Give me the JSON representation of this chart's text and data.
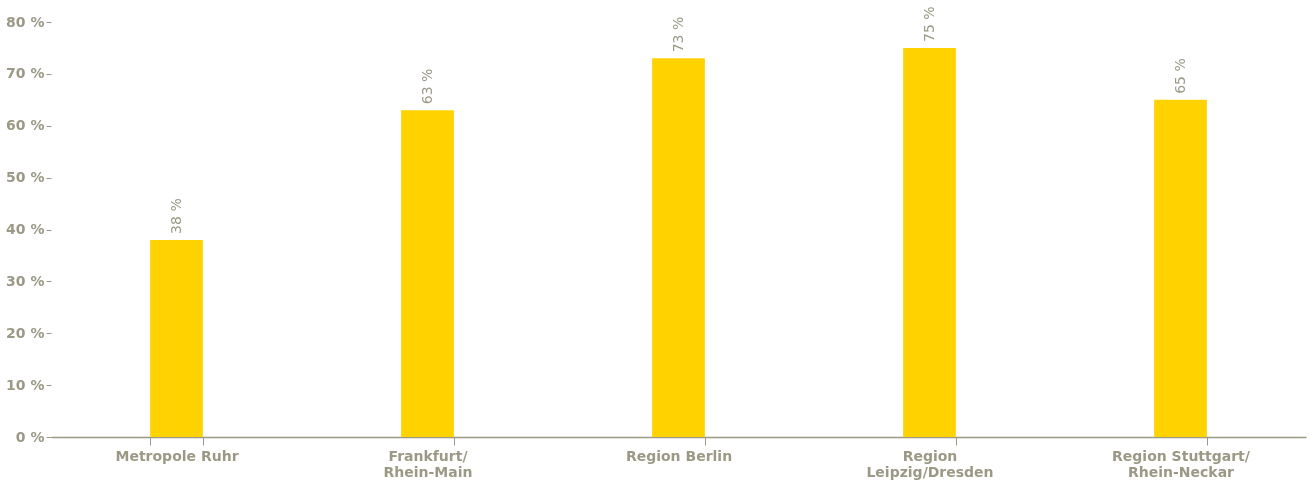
{
  "chart_data": {
    "type": "bar",
    "categories": [
      "Metropole Ruhr",
      "Frankfurt/\nRhein-Main",
      "Region Berlin",
      "Region\nLeipzig/Dresden",
      "Region Stuttgart/\nRhein-Neckar"
    ],
    "values": [
      38,
      63,
      73,
      75,
      65
    ],
    "value_labels": [
      "38 %",
      "63 %",
      "73 %",
      "75 %",
      "65 %"
    ],
    "color": "#ffd200",
    "ylim": [
      0,
      80
    ],
    "yticks": [
      {
        "value": 0,
        "label": "0 %"
      },
      {
        "value": 10,
        "label": "10 %"
      },
      {
        "value": 20,
        "label": "20 %"
      },
      {
        "value": 30,
        "label": "30 %"
      },
      {
        "value": 40,
        "label": "40 %"
      },
      {
        "value": 50,
        "label": "50 %"
      },
      {
        "value": 60,
        "label": "60 %"
      },
      {
        "value": 70,
        "label": "70 %"
      },
      {
        "value": 80,
        "label": "80 %"
      }
    ],
    "grid": false
  }
}
